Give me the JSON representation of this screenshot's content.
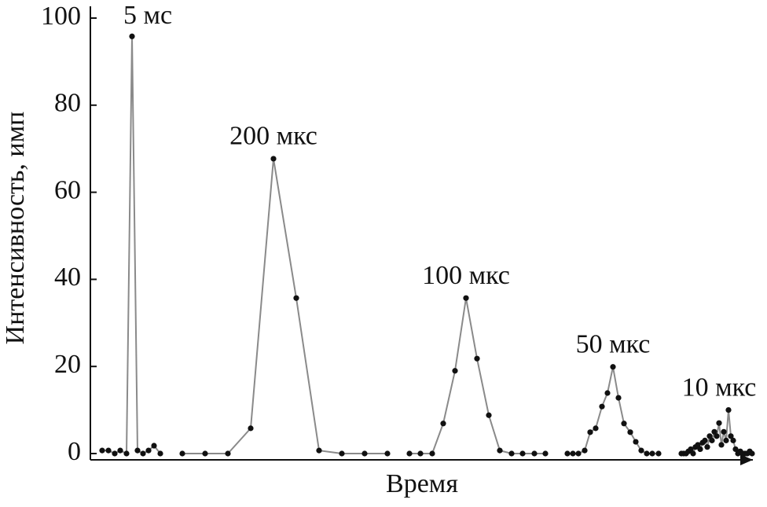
{
  "chart_data": {
    "type": "line",
    "x_label": "Время",
    "y_label": "Интенсивность, имп",
    "xlim": [
      0,
      845
    ],
    "ylim": [
      0,
      100
    ],
    "yticks": [
      0,
      20,
      40,
      60,
      80,
      100
    ],
    "line_color": "#8a8a8a",
    "marker_color": "#111111",
    "series": [
      {
        "name": "5 мс",
        "x": [
          15,
          23,
          31,
          38,
          46,
          53,
          60,
          67,
          74,
          81,
          89
        ],
        "values": [
          0.7,
          0.7,
          0,
          0.7,
          0,
          95.8,
          0.7,
          0,
          0.7,
          1.8,
          0
        ]
      },
      {
        "name": "200 мкс",
        "x": [
          117,
          146,
          175,
          204,
          233,
          262,
          291,
          320,
          349,
          378
        ],
        "values": [
          0,
          0,
          0,
          5.8,
          67.7,
          35.7,
          0.7,
          0,
          0,
          0
        ]
      },
      {
        "name": "100 мкс",
        "x": [
          406,
          420,
          435,
          449,
          464,
          478,
          492,
          507,
          521,
          536,
          550,
          565,
          579
        ],
        "values": [
          0,
          0,
          0,
          6.9,
          19.0,
          35.7,
          21.8,
          8.8,
          0.7,
          0,
          0,
          0,
          0
        ]
      },
      {
        "name": "50 мкс",
        "x": [
          607,
          614,
          621,
          629,
          636,
          643,
          651,
          658,
          665,
          672,
          679,
          687,
          694,
          701,
          708,
          715,
          723
        ],
        "values": [
          0,
          0,
          0,
          0.7,
          4.9,
          5.8,
          10.8,
          13.9,
          19.9,
          12.8,
          6.9,
          4.9,
          2.7,
          0.7,
          0,
          0,
          0
        ]
      },
      {
        "name": "10 мкс",
        "x": [
          752,
          755,
          758,
          761,
          764,
          767,
          770,
          773,
          776,
          779,
          782,
          785,
          788,
          791,
          794,
          797,
          800,
          803,
          806,
          809,
          812,
          815,
          818,
          821,
          824,
          827,
          830,
          833,
          836,
          839,
          842
        ],
        "values": [
          0,
          0,
          0,
          0.5,
          1,
          0,
          1.5,
          2,
          1,
          2.5,
          3,
          1.5,
          4,
          3,
          5,
          4,
          7,
          2,
          5,
          3,
          10,
          4,
          3,
          1,
          0,
          0.5,
          0,
          0,
          0,
          0.5,
          0
        ]
      }
    ]
  }
}
